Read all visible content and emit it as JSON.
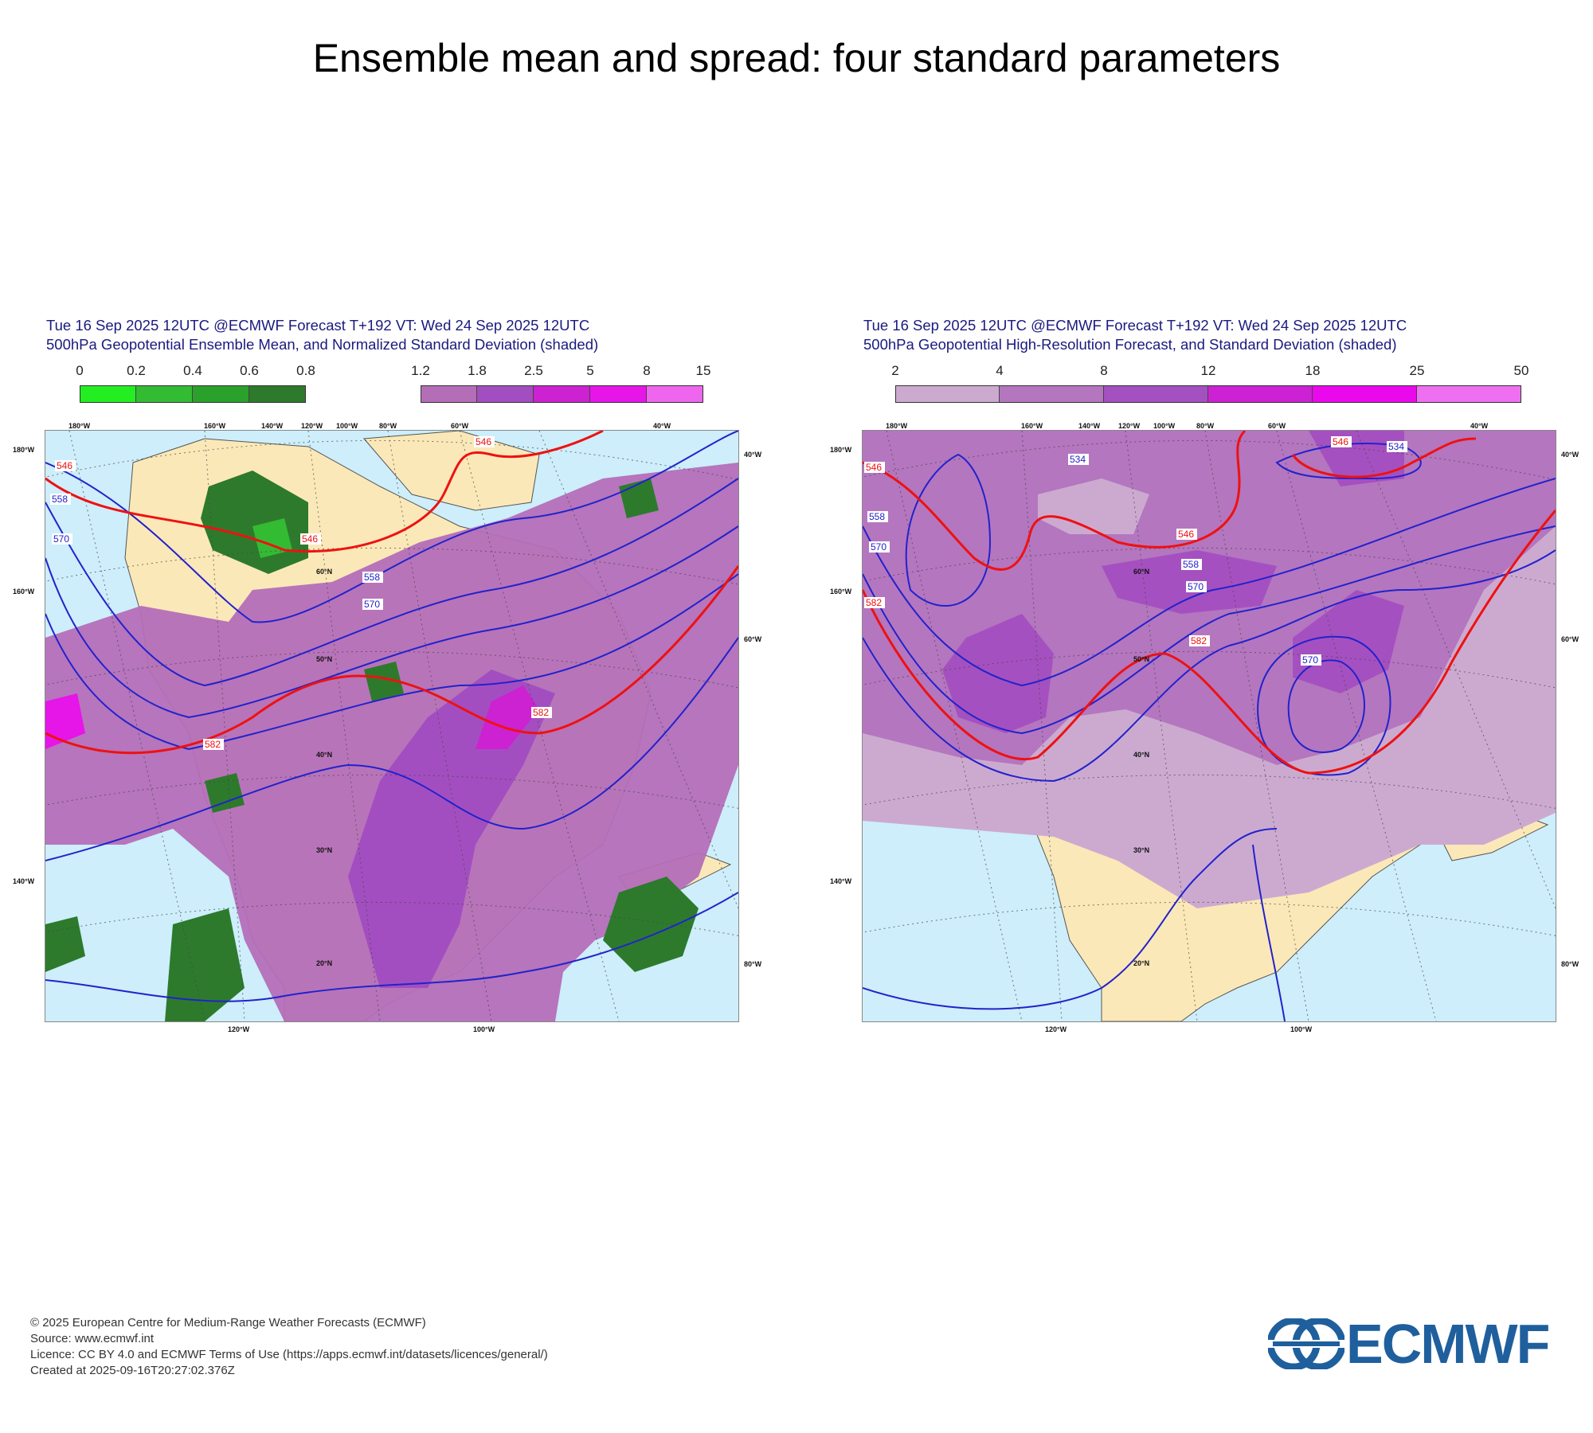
{
  "page_title": "Ensemble mean and spread: four standard parameters",
  "panels": [
    {
      "title_line1": "Tue 16 Sep 2025 12UTC @ECMWF Forecast T+192 VT: Wed 24 Sep 2025 12UTC",
      "title_line2": "500hPa Geopotential Ensemble Mean, and Normalized Standard Deviation (shaded)",
      "colorbars": [
        {
          "ticks": [
            "0",
            "0.2",
            "0.4",
            "0.6",
            "0.8"
          ],
          "colors": [
            "#22ee22",
            "#33bb33",
            "#2aa12a",
            "#2d7a2d"
          ]
        },
        {
          "ticks": [
            "1.2",
            "1.8",
            "2.5",
            "5",
            "8",
            "15"
          ],
          "colors": [
            "#b46eb8",
            "#a34ec0",
            "#cc22d2",
            "#e615e8",
            "#ee66ee"
          ]
        }
      ],
      "contour_labels": [
        "546",
        "546",
        "546",
        "558",
        "558",
        "570",
        "570",
        "582",
        "582"
      ],
      "lon_labels_top": [
        "180°W",
        "160°W",
        "140°W",
        "120°W",
        "100°W",
        "80°W",
        "60°W",
        "40°W"
      ],
      "lon_labels_bottom": [
        "120°W",
        "100°W"
      ],
      "lon_labels_left": [
        "180°W",
        "160°W",
        "140°W"
      ],
      "lon_labels_right": [
        "40°W",
        "60°W",
        "80°W"
      ],
      "lat_labels": [
        "60°N",
        "50°N",
        "40°N",
        "30°N",
        "20°N"
      ]
    },
    {
      "title_line1": "Tue 16 Sep 2025 12UTC @ECMWF Forecast T+192 VT: Wed 24 Sep 2025 12UTC",
      "title_line2": "500hPa Geopotential High-Resolution Forecast, and Standard Deviation (shaded)",
      "colorbars": [
        {
          "ticks": [
            "2",
            "4",
            "8",
            "12",
            "18",
            "25",
            "50"
          ],
          "colors": [
            "#ccaad0",
            "#b476bf",
            "#a550c0",
            "#cc22d4",
            "#ea08ec",
            "#ee70f0"
          ]
        }
      ],
      "contour_labels": [
        "534",
        "534",
        "546",
        "546",
        "546",
        "558",
        "558",
        "570",
        "570",
        "570",
        "582",
        "582"
      ],
      "lon_labels_top": [
        "180°W",
        "160°W",
        "140°W",
        "120°W",
        "100°W",
        "80°W",
        "60°W",
        "40°W"
      ],
      "lon_labels_bottom": [
        "120°W",
        "100°W"
      ],
      "lon_labels_left": [
        "180°W",
        "160°W",
        "140°W"
      ],
      "lon_labels_right": [
        "40°W",
        "60°W",
        "80°W"
      ],
      "lat_labels": [
        "60°N",
        "50°N",
        "40°N",
        "30°N",
        "20°N"
      ]
    }
  ],
  "footer": {
    "copyright": "© 2025 European Centre for Medium-Range Weather Forecasts (ECMWF)",
    "source": "Source: www.ecmwf.int",
    "licence": "Licence: CC BY 4.0 and ECMWF Terms of Use (https://apps.ecmwf.int/datasets/licences/general/)",
    "created": "Created at 2025-09-16T20:27:02.376Z"
  },
  "logo": {
    "text": "ECMWF",
    "color": "#1f5f9d"
  },
  "colors": {
    "ocean": "#cdeefa",
    "land": "#fbe8b8",
    "contour_main": "#2222cc",
    "contour_highlight": "#ee1111"
  }
}
